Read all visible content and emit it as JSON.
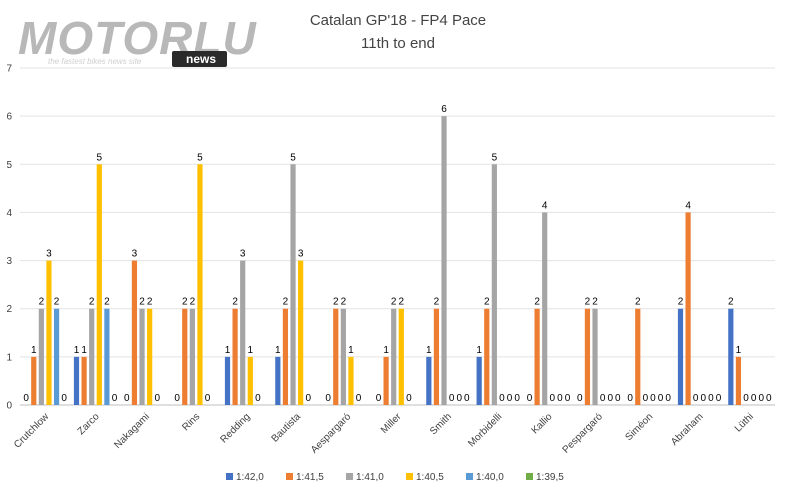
{
  "logo": {
    "brand": "MOTORLU",
    "tagline": "the fastest bikes news site",
    "badge": "news"
  },
  "chart_data": {
    "type": "bar",
    "title": "Catalan GP'18 - FP4 Pace",
    "subtitle": "11th to end",
    "xlabel": "",
    "ylabel": "",
    "ylim": [
      0,
      7
    ],
    "yticks": [
      0,
      1,
      2,
      3,
      4,
      5,
      6,
      7
    ],
    "grid": true,
    "legend_position": "bottom",
    "categories": [
      "Crutchlow",
      "Zarco",
      "Nakagami",
      "Rins",
      "Redding",
      "Bautista",
      "Aespargaró",
      "Miller",
      "Smith",
      "Morbidelli",
      "Kallio",
      "Pespargaró",
      "Siméon",
      "Abraham",
      "Lüthi"
    ],
    "series": [
      {
        "name": "1:42,0",
        "color": "#4472C4",
        "values": [
          0,
          1,
          0,
          0,
          1,
          1,
          0,
          0,
          1,
          1,
          0,
          0,
          0,
          2,
          2
        ],
        "labels": [
          "0",
          "1",
          "0",
          "0",
          "1",
          "1",
          "0",
          "0",
          "1",
          "1",
          "0",
          "0",
          "0",
          "2",
          "2"
        ]
      },
      {
        "name": "1:41,5",
        "color": "#ED7D31",
        "values": [
          1,
          1,
          3,
          2,
          2,
          2,
          2,
          1,
          2,
          2,
          2,
          2,
          2,
          4,
          1
        ],
        "labels": [
          "1",
          "1",
          "3",
          "2",
          "2",
          "2",
          "2",
          "1",
          "2",
          "2",
          "2",
          "2",
          "2",
          "4",
          "1"
        ]
      },
      {
        "name": "1:41,0",
        "color": "#A5A5A5",
        "values": [
          2,
          2,
          2,
          2,
          3,
          5,
          2,
          2,
          6,
          5,
          4,
          2,
          0,
          0,
          0
        ],
        "labels": [
          "2",
          "2",
          "2",
          "2",
          "3",
          "5",
          "2",
          "2",
          "6",
          "5",
          "4",
          "2",
          "0",
          "0",
          "0"
        ]
      },
      {
        "name": "1:40,5",
        "color": "#FFC000",
        "values": [
          3,
          5,
          2,
          5,
          1,
          3,
          1,
          2,
          0,
          0,
          0,
          0,
          0,
          0,
          0
        ],
        "labels": [
          "3",
          "5",
          "2",
          "5",
          "1",
          "3",
          "1",
          "2",
          "0",
          "0",
          "0",
          "0",
          "0",
          "0",
          "0"
        ]
      },
      {
        "name": "1:40,0",
        "color": "#5B9BD5",
        "values": [
          2,
          2,
          0,
          0,
          0,
          0,
          0,
          0,
          0,
          0,
          0,
          0,
          0,
          0,
          0
        ],
        "labels": [
          "2",
          "2",
          "0",
          "0",
          "0",
          "0",
          "0",
          "0",
          "0",
          "0",
          "0",
          "0",
          "0",
          "0",
          "0"
        ]
      },
      {
        "name": "1:39,5",
        "color": "#70AD47",
        "values": [
          0,
          0,
          0,
          0,
          0,
          0,
          0,
          0,
          0,
          0,
          0,
          0,
          0,
          0,
          0
        ],
        "labels": [
          "0",
          "0",
          "",
          "",
          "",
          "",
          "",
          "",
          "0",
          "0",
          "0",
          "0",
          "0",
          "0",
          "0"
        ]
      }
    ]
  }
}
